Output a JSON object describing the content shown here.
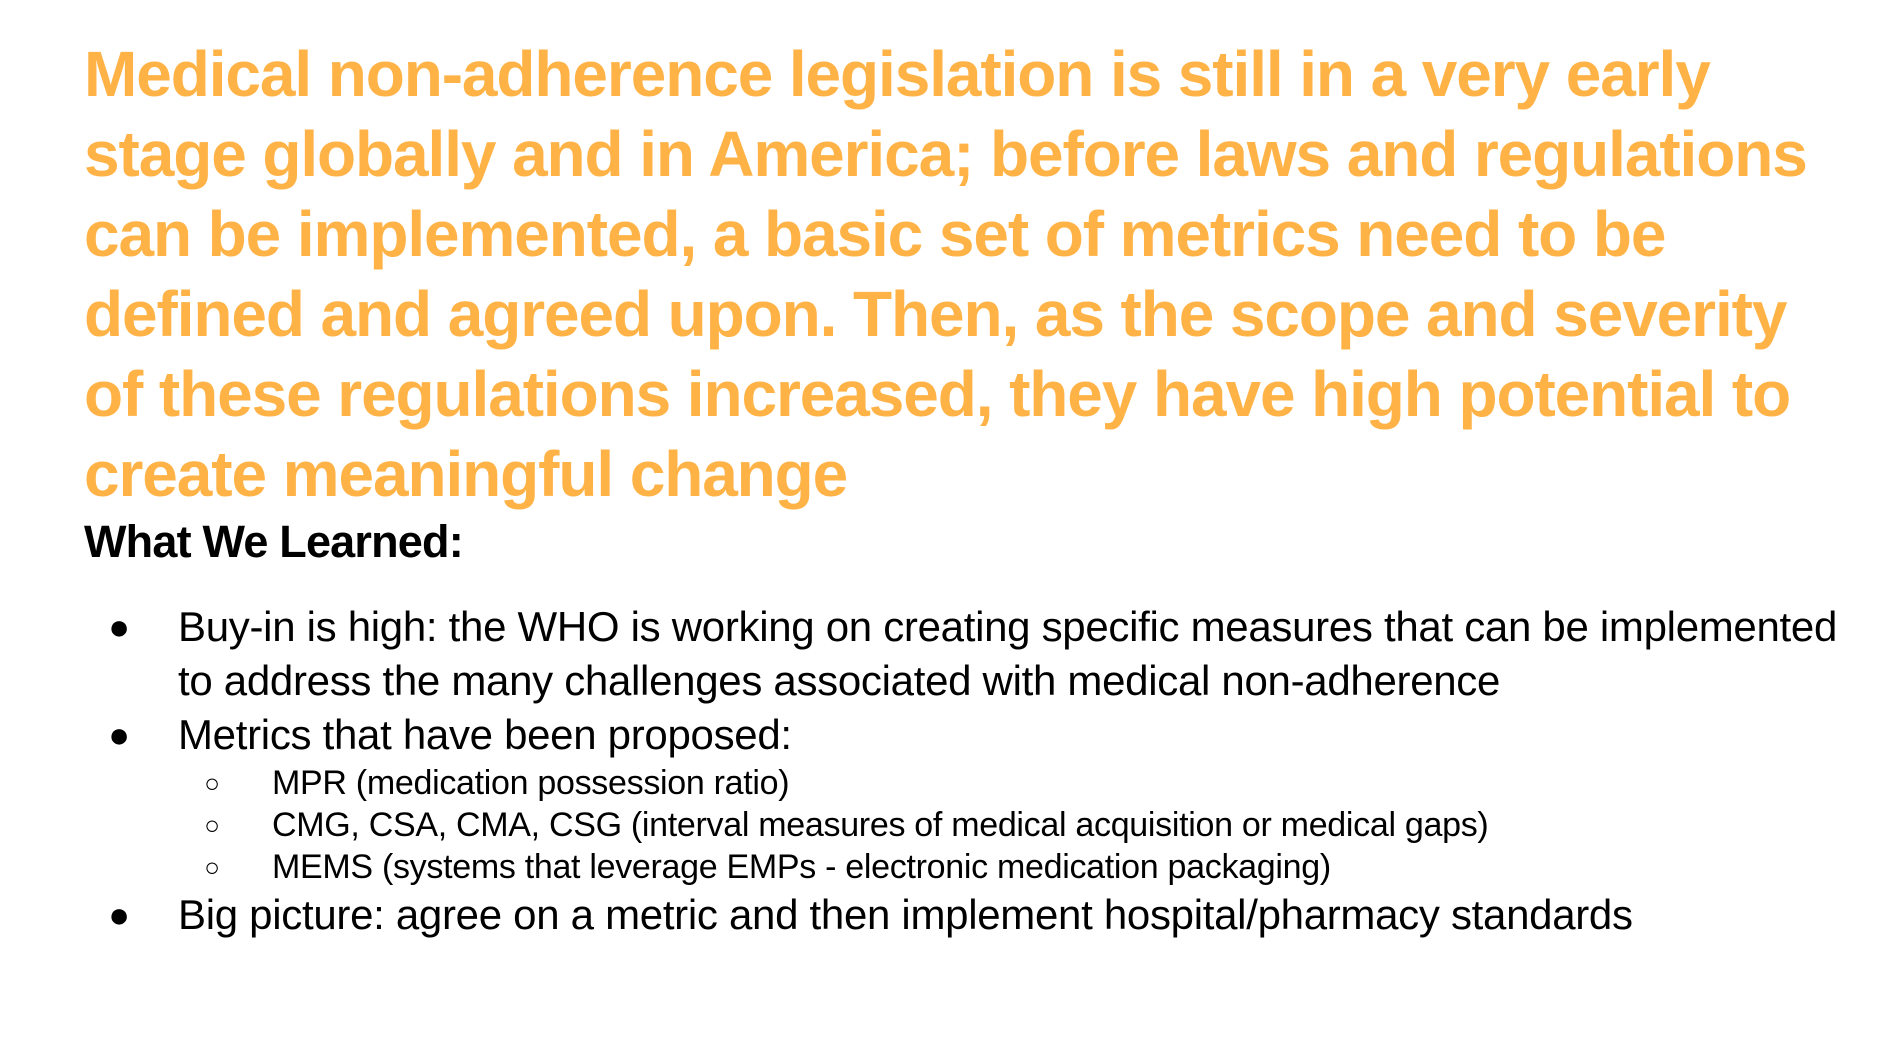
{
  "headline": "Medical non-adherence legislation is still in a very early stage globally and in America; before laws and regulations can be implemented, a basic set of metrics need to be defined and agreed upon. Then, as the scope and severity of these regulations increased, they have high potential to create meaningful change",
  "section_heading": "What We Learned:",
  "bullets": [
    {
      "marker": "●",
      "text": "Buy-in is high: the WHO is working on creating specific measures that can be implemented to address the many challenges associated with medical non-adherence"
    },
    {
      "marker": "●",
      "text": "Metrics that have been proposed:",
      "subitems": [
        {
          "marker": "○",
          "text": "MPR (medication possession ratio)"
        },
        {
          "marker": "○",
          "text": "CMG, CSA, CMA, CSG (interval measures of medical acquisition or medical gaps)"
        },
        {
          "marker": "○",
          "text": "MEMS (systems that leverage EMPs - electronic medication packaging)"
        }
      ]
    },
    {
      "marker": "●",
      "text": "Big picture: agree on a metric and then implement hospital/pharmacy standards"
    }
  ],
  "colors": {
    "headline": "#ffb347",
    "body_text": "#000000",
    "background": "#ffffff"
  }
}
